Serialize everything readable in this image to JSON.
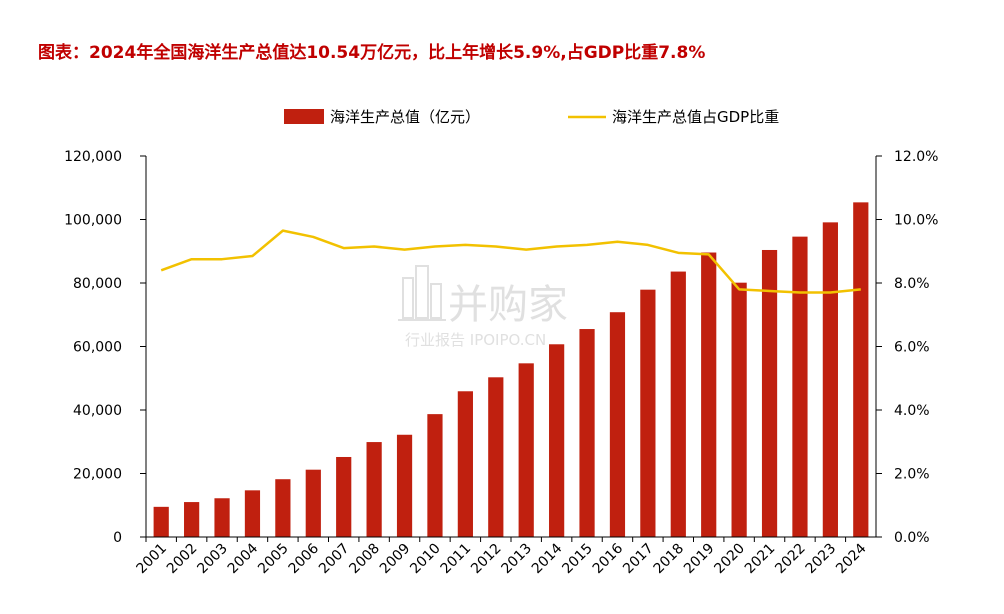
{
  "chart_title": "图表：2024年全国海洋生产总值达10.54万亿元，比上年增长5.9%,占GDP比重7.8%",
  "watermark": {
    "brand": "并购家",
    "sub": "行业报告 IPOIPO.CN"
  },
  "colors": {
    "title": "#c00000",
    "bar": "#c0200f",
    "line": "#f2c100",
    "axis": "#000000"
  },
  "chart_data": {
    "type": "bar",
    "categories": [
      "2001",
      "2002",
      "2003",
      "2004",
      "2005",
      "2006",
      "2007",
      "2008",
      "2009",
      "2010",
      "2011",
      "2012",
      "2013",
      "2014",
      "2015",
      "2016",
      "2017",
      "2018",
      "2019",
      "2020",
      "2021",
      "2022",
      "2023",
      "2024"
    ],
    "series": [
      {
        "name": "海洋生产总值（亿元）",
        "type": "bar",
        "axis": "left",
        "values": [
          9500,
          11000,
          12200,
          14700,
          18200,
          21200,
          25200,
          29900,
          32200,
          38700,
          45900,
          50300,
          54700,
          60700,
          65500,
          70800,
          77900,
          83600,
          89600,
          80100,
          90400,
          94600,
          99100,
          105400
        ]
      },
      {
        "name": "海洋生产总值占GDP比重",
        "type": "line",
        "axis": "right",
        "values": [
          8.4,
          8.75,
          8.75,
          8.85,
          9.65,
          9.45,
          9.1,
          9.15,
          9.05,
          9.15,
          9.2,
          9.15,
          9.05,
          9.15,
          9.2,
          9.3,
          9.2,
          8.95,
          8.9,
          7.8,
          7.75,
          7.7,
          7.7,
          7.8
        ]
      }
    ],
    "y_left": {
      "min": 0,
      "max": 120000,
      "ticks": [
        "0",
        "20,000",
        "40,000",
        "60,000",
        "80,000",
        "100,000",
        "120,000"
      ]
    },
    "y_right": {
      "min": 0,
      "max": 12,
      "ticks": [
        "0.0%",
        "2.0%",
        "4.0%",
        "6.0%",
        "8.0%",
        "10.0%",
        "12.0%"
      ]
    },
    "legend_position": "top-center",
    "grid": false,
    "xlabel": "",
    "ylabel": ""
  }
}
